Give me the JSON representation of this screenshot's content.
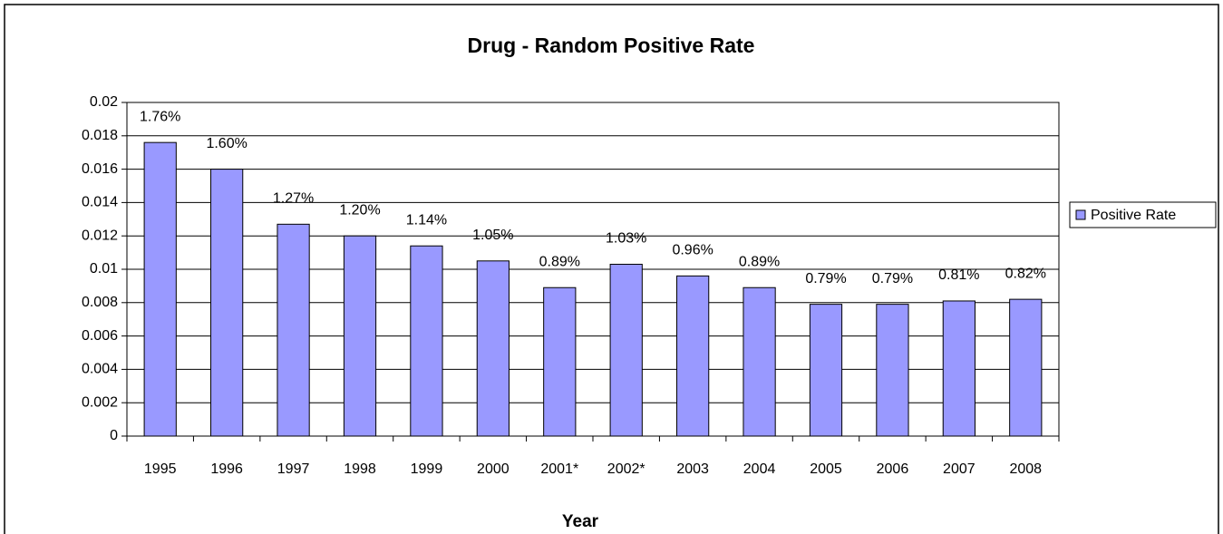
{
  "chart_data": {
    "type": "bar",
    "title": "Drug - Random Positive Rate",
    "x_label": "Year",
    "categories": [
      "1995",
      "1996",
      "1997",
      "1998",
      "1999",
      "2000",
      "2001*",
      "2002*",
      "2003",
      "2004",
      "2005",
      "2006",
      "2007",
      "2008"
    ],
    "series": [
      {
        "name": "Positive Rate",
        "color": "#9999ff",
        "values": [
          0.0176,
          0.016,
          0.0127,
          0.012,
          0.0114,
          0.0105,
          0.0089,
          0.0103,
          0.0096,
          0.0089,
          0.0079,
          0.0079,
          0.0081,
          0.0082
        ],
        "value_labels": [
          "1.76%",
          "1.60%",
          "1.27%",
          "1.20%",
          "1.14%",
          "1.05%",
          "0.89%",
          "1.03%",
          "0.96%",
          "0.89%",
          "0.79%",
          "0.79%",
          "0.81%",
          "0.82%"
        ]
      }
    ],
    "ylim": [
      0,
      0.02
    ],
    "yticks": [
      0,
      0.002,
      0.004,
      0.006,
      0.008,
      0.01,
      0.012,
      0.014,
      0.016,
      0.018,
      0.02
    ],
    "grid": true,
    "legend": "right"
  }
}
